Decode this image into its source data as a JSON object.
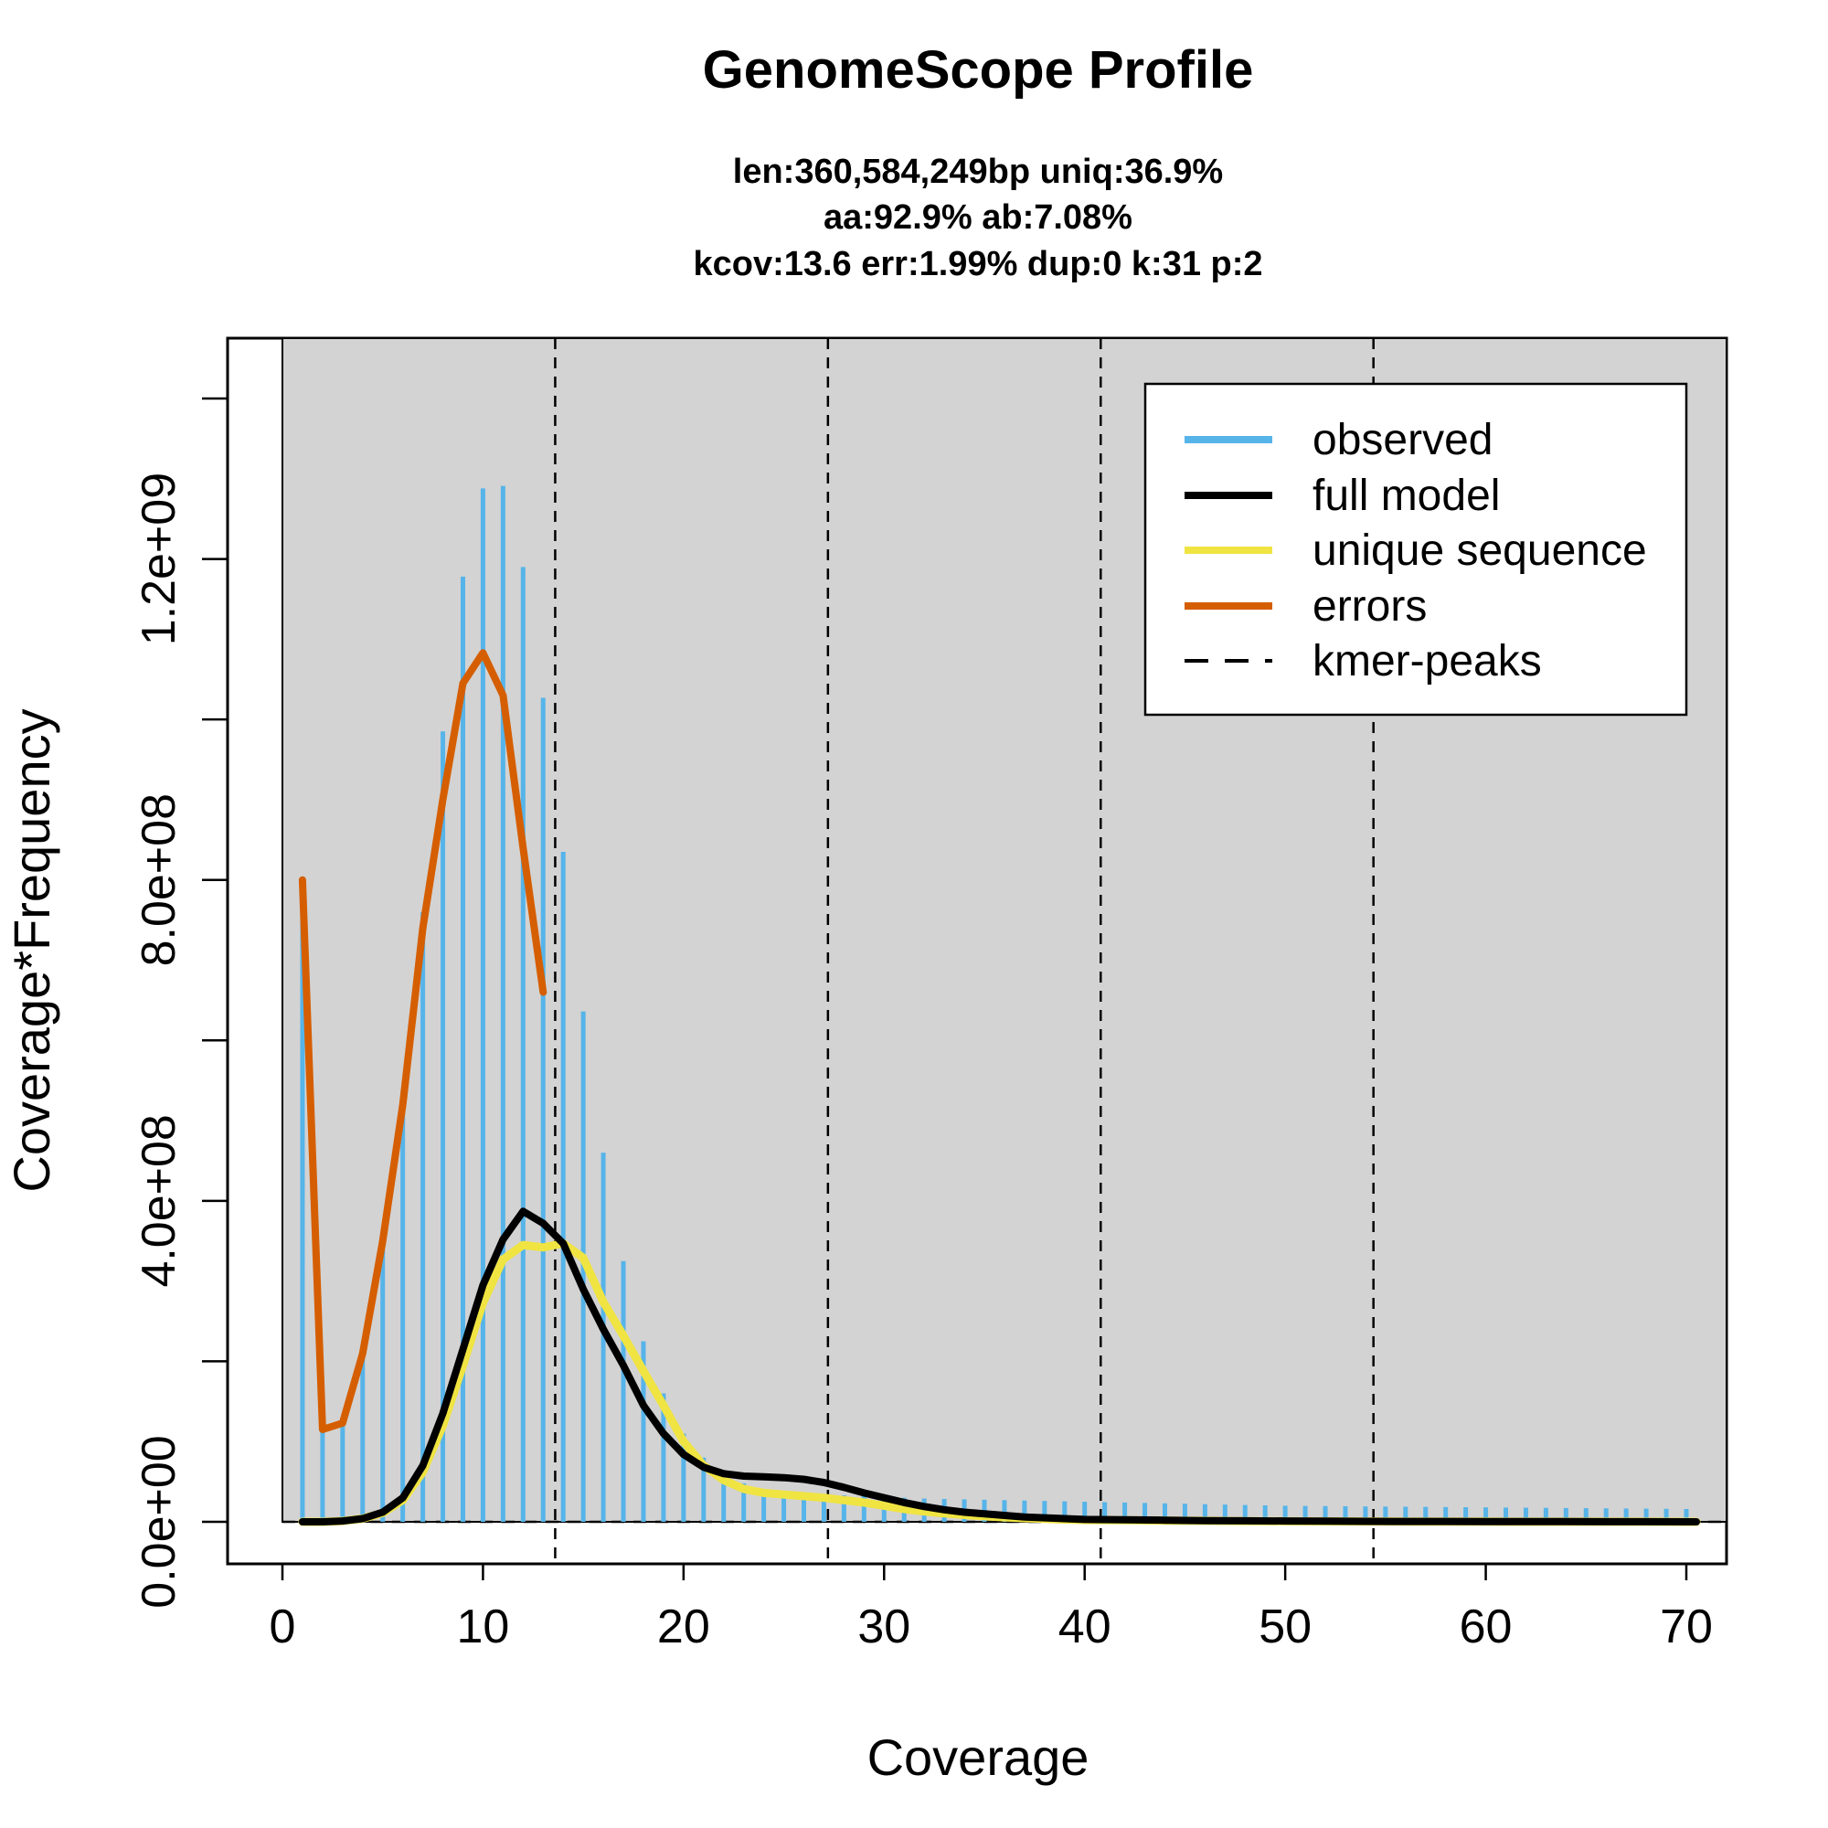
{
  "chart_data": {
    "type": "bar",
    "title": "GenomeScope Profile",
    "subtitle_lines": [
      "len:360,584,249bp uniq:36.9%",
      "aa:92.9% ab:7.08%",
      "kcov:13.6 err:1.99%  dup:0  k:31 p:2"
    ],
    "xlabel": "Coverage",
    "ylabel": "Coverage*Frequency",
    "xlim": [
      0,
      70
    ],
    "ylim": [
      0,
      1400000000
    ],
    "x_ticks": [
      0,
      10,
      20,
      30,
      40,
      50,
      60,
      70
    ],
    "x_tick_labels": [
      "0",
      "10",
      "20",
      "30",
      "40",
      "50",
      "60",
      "70"
    ],
    "y_ticks": [
      0,
      200000000,
      400000000,
      600000000,
      800000000,
      1000000000,
      1200000000,
      1400000000
    ],
    "y_tick_labels": [
      "0.0e+00",
      "",
      "4.0e+08",
      "",
      "8.0e+08",
      "",
      "1.2e+09",
      ""
    ],
    "grid": false,
    "legend_position": "top-right",
    "kmer_peaks": [
      13.6,
      27.2,
      40.8,
      54.4
    ],
    "colors": {
      "panel": "#d3d3d3",
      "observed": "#56b4e9",
      "full_model": "#000000",
      "unique_sequence": "#f0e442",
      "errors": "#d55e00"
    },
    "series": [
      {
        "name": "observed",
        "style": "bars",
        "x": [
          1,
          2,
          3,
          4,
          5,
          6,
          7,
          8,
          9,
          10,
          11,
          12,
          13,
          14,
          15,
          16,
          17,
          18,
          19,
          20,
          21,
          22,
          23,
          24,
          25,
          26,
          27,
          28,
          29,
          30,
          31,
          32,
          33,
          34,
          35,
          36,
          37,
          38,
          39,
          40,
          41,
          42,
          43,
          44,
          45,
          46,
          47,
          48,
          49,
          50,
          51,
          52,
          53,
          54,
          55,
          56,
          57,
          58,
          59,
          60,
          61,
          62,
          63,
          64,
          65,
          66,
          67,
          68,
          69,
          70
        ],
        "values": [
          800000000,
          120000000,
          130000000,
          210000000,
          360000000,
          530000000,
          760000000,
          985000000,
          1178000000,
          1288000000,
          1291000000,
          1190000000,
          1027000000,
          835000000,
          636000000,
          460000000,
          325000000,
          225000000,
          160000000,
          110000000,
          80000000,
          60000000,
          48000000,
          41000000,
          37000000,
          35000000,
          34000000,
          33000000,
          32000000,
          31000000,
          30000000,
          29000000,
          28500000,
          28000000,
          27500000,
          27000000,
          26500000,
          26000000,
          25500000,
          25000000,
          24500000,
          24000000,
          23500000,
          23000000,
          22500000,
          22000000,
          21500000,
          21000000,
          20500000,
          20000000,
          19800000,
          19600000,
          19400000,
          19200000,
          19000000,
          18800000,
          18600000,
          18400000,
          18200000,
          18000000,
          17800000,
          17600000,
          17400000,
          17200000,
          17000000,
          16800000,
          16600000,
          16400000,
          16200000,
          16000000
        ]
      },
      {
        "name": "full model",
        "style": "line",
        "x": [
          1,
          2,
          3,
          4,
          5,
          6,
          7,
          8,
          9,
          10,
          11,
          12,
          13,
          14,
          15,
          16,
          17,
          18,
          19,
          20,
          21,
          22,
          23,
          24,
          25,
          26,
          27,
          28,
          29,
          30,
          31,
          32,
          33,
          34,
          35,
          36,
          37,
          38,
          39,
          40,
          42,
          44,
          46,
          48,
          50,
          52,
          54,
          56,
          58,
          60,
          62,
          64,
          66,
          68,
          70,
          70.5
        ],
        "values": [
          0,
          0,
          1000000,
          4000000,
          12000000,
          30000000,
          70000000,
          135000000,
          215000000,
          295000000,
          352000000,
          387000000,
          372000000,
          347000000,
          290000000,
          240000000,
          195000000,
          145000000,
          110000000,
          84000000,
          68000000,
          60000000,
          57000000,
          56000000,
          55000000,
          53000000,
          49000000,
          43000000,
          36000000,
          30000000,
          24000000,
          19000000,
          15000000,
          12000000,
          10000000,
          8000000,
          6000000,
          5000000,
          4000000,
          3000000,
          2500000,
          2000000,
          1500000,
          1200000,
          1000000,
          800000,
          600000,
          500000,
          400000,
          300000,
          250000,
          200000,
          150000,
          100000,
          50000,
          0
        ]
      },
      {
        "name": "unique sequence",
        "style": "line",
        "x": [
          1,
          2,
          3,
          4,
          5,
          6,
          7,
          8,
          9,
          10,
          11,
          12,
          13,
          14,
          15,
          16,
          17,
          18,
          19,
          20,
          21,
          22,
          23,
          24,
          25,
          26,
          27,
          28,
          29,
          30,
          31,
          32,
          33,
          34,
          35,
          36,
          37,
          38,
          39,
          40,
          42,
          44,
          46,
          48,
          50,
          52,
          54,
          56,
          58,
          60,
          62,
          64,
          66,
          68,
          70,
          70.5
        ],
        "values": [
          0,
          0,
          1000000,
          4000000,
          11000000,
          27000000,
          62000000,
          120000000,
          195000000,
          273000000,
          327000000,
          345000000,
          342000000,
          347000000,
          329000000,
          274000000,
          232000000,
          188000000,
          145000000,
          100000000,
          70000000,
          52000000,
          41000000,
          36000000,
          34000000,
          32000000,
          30000000,
          27000000,
          24000000,
          20000000,
          16000000,
          13000000,
          10500000,
          8500000,
          7000000,
          5600000,
          4500000,
          3600000,
          2900000,
          2300000,
          1900000,
          1500000,
          1200000,
          900000,
          700000,
          550000,
          430000,
          340000,
          270000,
          210000,
          160000,
          120000,
          90000,
          60000,
          30000,
          0
        ]
      },
      {
        "name": "errors",
        "style": "line",
        "x": [
          1,
          2,
          3,
          4,
          5,
          6,
          7,
          8,
          9,
          10,
          11,
          12,
          13
        ],
        "values": [
          800000000,
          115000000,
          123000000,
          210000000,
          350000000,
          520000000,
          740000000,
          900000000,
          1045000000,
          1083000000,
          1030000000,
          840000000,
          660000000
        ]
      }
    ],
    "legend": [
      {
        "label": "observed",
        "style": "solid",
        "color": "#56b4e9"
      },
      {
        "label": "full model",
        "style": "solid",
        "color": "#000000"
      },
      {
        "label": "unique sequence",
        "style": "solid",
        "color": "#f0e442"
      },
      {
        "label": "errors",
        "style": "solid",
        "color": "#d55e00"
      },
      {
        "label": "kmer-peaks",
        "style": "dashed",
        "color": "#000000"
      }
    ]
  }
}
